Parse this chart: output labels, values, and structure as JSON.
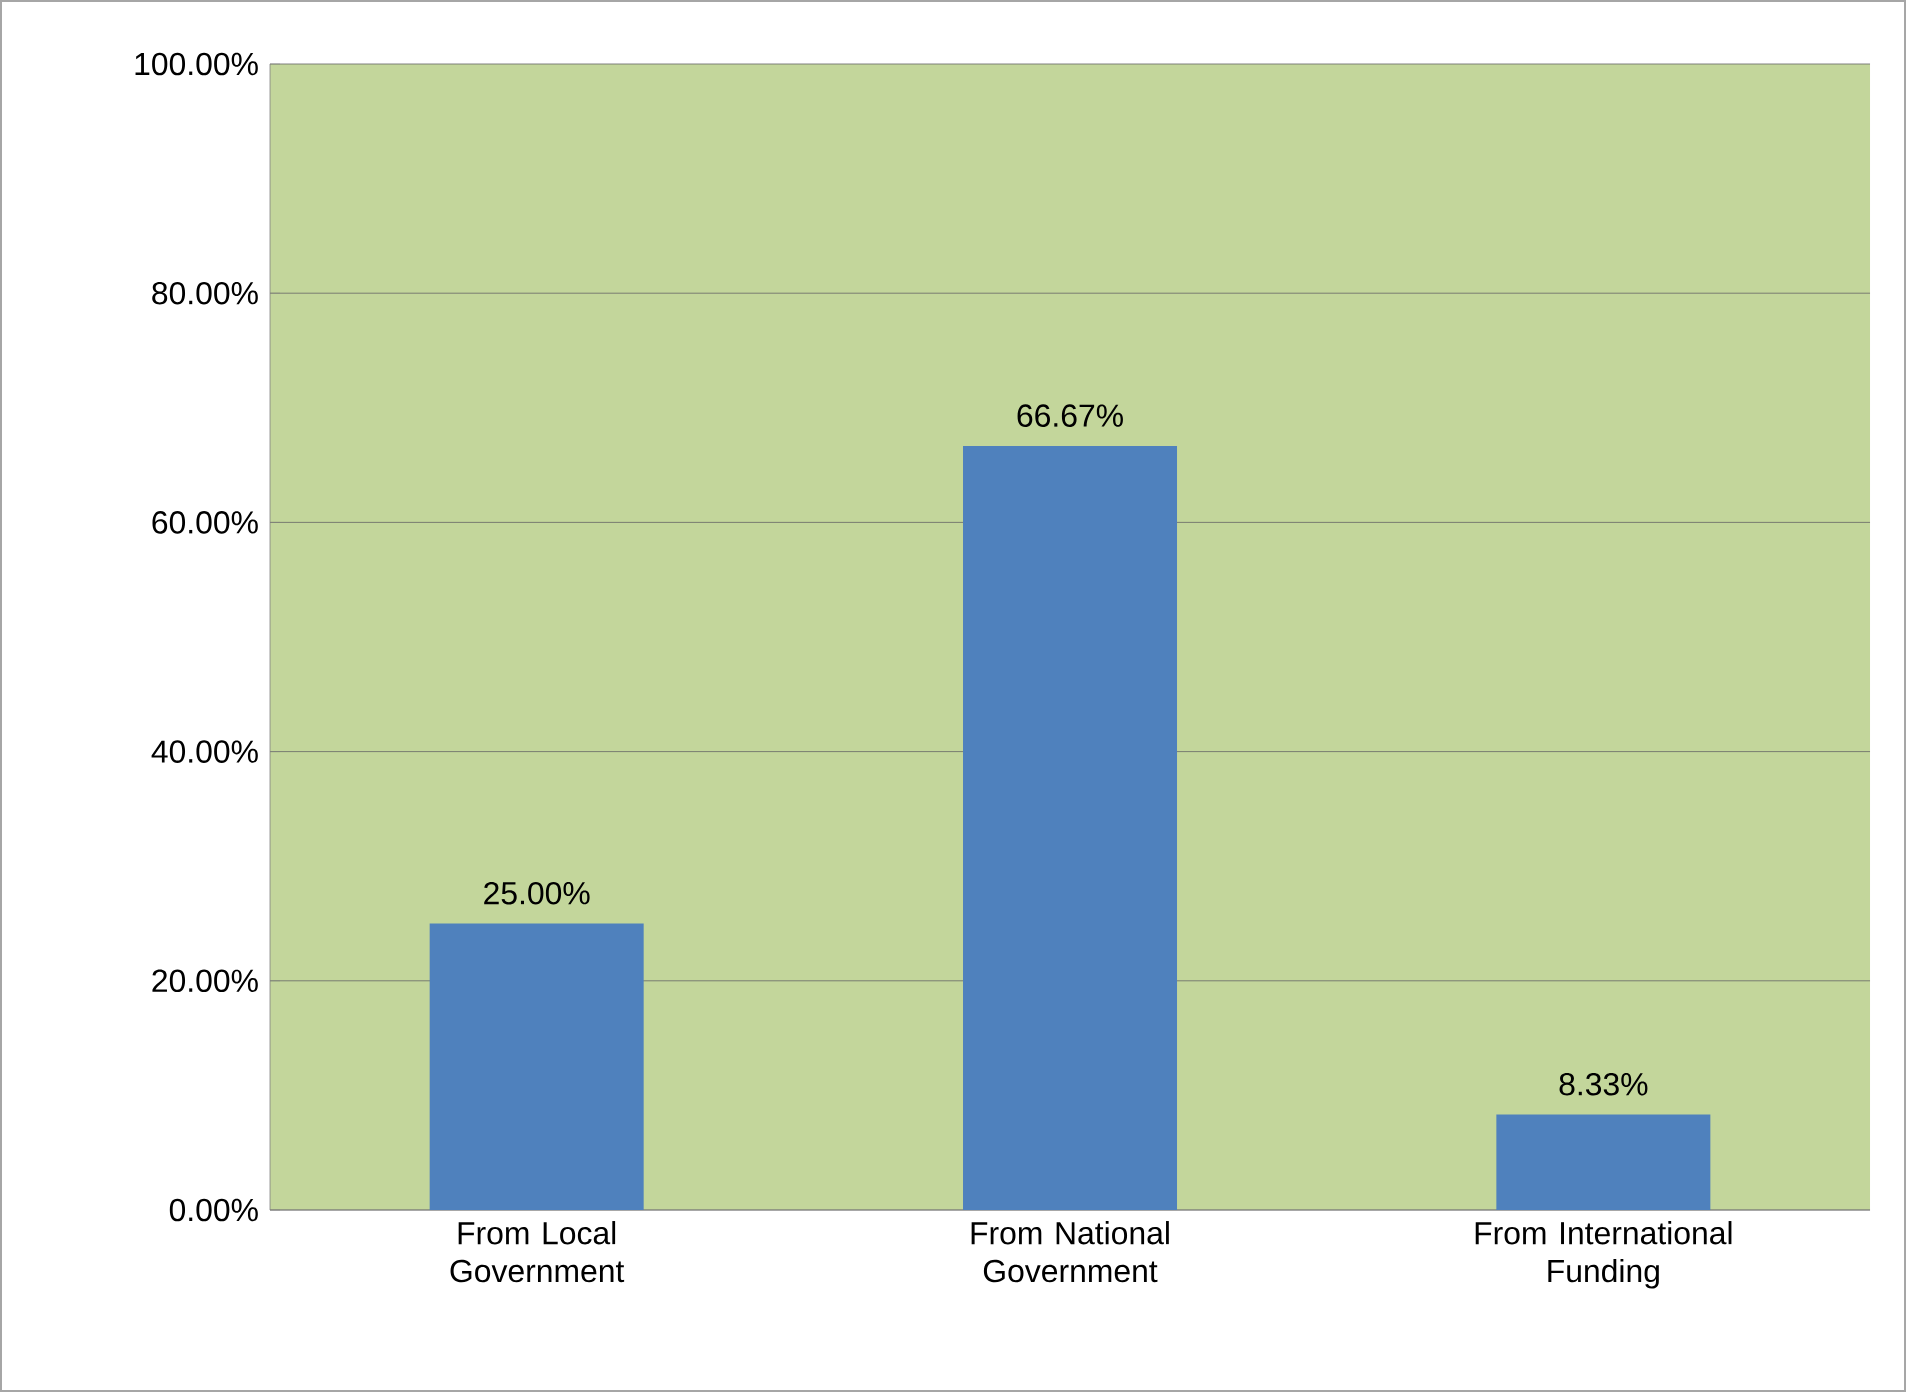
{
  "chart_data": {
    "type": "bar",
    "categories": [
      "From Local Government",
      "From National Government",
      "From International Funding"
    ],
    "values": [
      25.0,
      66.67,
      8.33
    ],
    "value_labels": [
      "25.00%",
      "66.67%",
      "8.33%"
    ],
    "color": "#4f81bd",
    "ylim": [
      0,
      100
    ],
    "yticks": [
      {
        "value": 0,
        "label": "0.00%"
      },
      {
        "value": 20,
        "label": "20.00%"
      },
      {
        "value": 40,
        "label": "40.00%"
      },
      {
        "value": 60,
        "label": "60.00%"
      },
      {
        "value": 80,
        "label": "80.00%"
      },
      {
        "value": 100,
        "label": "100.00%"
      }
    ],
    "grid": "y"
  }
}
